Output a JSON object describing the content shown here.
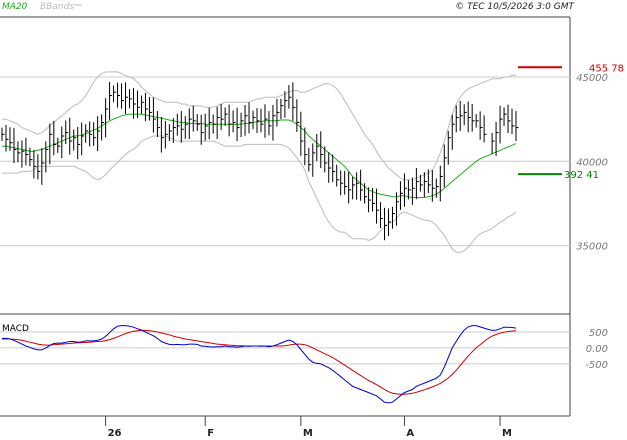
{
  "header": {
    "legend_ma": "MA20",
    "legend_bbands": "BBands",
    "copyright": "© TEC 10/5/2026 3:0 GMT"
  },
  "colors": {
    "price": "#000000",
    "ma20": "#22aa22",
    "bbands": "#bbbbbb",
    "resistance": "#cc0000",
    "support": "#008800",
    "macd": "#0000cc",
    "signal": "#cc0000",
    "grid": "#cccccc"
  },
  "chart_data": [
    {
      "type": "ohlc",
      "panel": "price",
      "ylim": [
        31000,
        48500
      ],
      "y_ticks": [
        {
          "value": 35000,
          "label": "35000"
        },
        {
          "value": 40000,
          "label": "40000"
        },
        {
          "value": 45000,
          "label": "45000"
        }
      ],
      "x_labels": [
        {
          "index": 26,
          "label": "26"
        },
        {
          "index": 51,
          "label": "F"
        },
        {
          "index": 75,
          "label": "M"
        },
        {
          "index": 101,
          "label": "A"
        },
        {
          "index": 125,
          "label": "M"
        }
      ],
      "count": 130,
      "close": [
        41600,
        41300,
        41100,
        40700,
        40500,
        40600,
        40400,
        40100,
        39700,
        39400,
        39900,
        40700,
        41600,
        41000,
        40900,
        41500,
        41700,
        41200,
        41400,
        41000,
        41500,
        41800,
        41600,
        41400,
        41800,
        42300,
        43100,
        43900,
        44100,
        43900,
        43600,
        43800,
        43700,
        43400,
        43200,
        43500,
        43100,
        42900,
        42500,
        42000,
        41400,
        41600,
        41800,
        42000,
        42100,
        41900,
        42200,
        42500,
        42400,
        42200,
        41700,
        42100,
        42300,
        42200,
        42600,
        42500,
        42800,
        42200,
        42300,
        42000,
        42400,
        42700,
        42300,
        42600,
        42400,
        42200,
        42500,
        42100,
        42700,
        42900,
        43300,
        43600,
        43800,
        43200,
        42300,
        41200,
        40400,
        39800,
        40500,
        40900,
        40400,
        39900,
        39600,
        39400,
        38900,
        38700,
        38500,
        38300,
        38600,
        38700,
        38300,
        37900,
        37700,
        37500,
        37100,
        36600,
        36200,
        36400,
        36900,
        37600,
        38100,
        38400,
        38300,
        38400,
        38800,
        38600,
        38800,
        38600,
        38400,
        38500,
        39100,
        40200,
        41400,
        42200,
        42600,
        42700,
        42900,
        42600,
        42400,
        42400,
        42000,
        41600,
        41000,
        41200,
        41700,
        42500,
        42800,
        42400,
        42100,
        42000
      ],
      "range": 800
    },
    {
      "type": "line",
      "panel": "price",
      "series": [
        {
          "name": "MA20",
          "values": [
            40900,
            40900,
            40850,
            40800,
            40750,
            40700,
            40650,
            40600,
            40600,
            40650,
            40700,
            40800,
            40900,
            41000,
            41100,
            41200,
            41300,
            41400,
            41500,
            41500,
            41550,
            41650,
            41750,
            41850,
            41950,
            42100,
            42250,
            42400,
            42500,
            42600,
            42700,
            42750,
            42800,
            42800,
            42800,
            42800,
            42750,
            42700,
            42650,
            42600,
            42550,
            42500,
            42450,
            42400,
            42350,
            42300,
            42300,
            42250,
            42250,
            42250,
            42250,
            42200,
            42200,
            42200,
            42200,
            42200,
            42200,
            42200,
            42200,
            42200,
            42200,
            42250,
            42250,
            42300,
            42350,
            42350,
            42400,
            42400,
            42400,
            42400,
            42450,
            42450,
            42450,
            42350,
            42200,
            42000,
            41800,
            41500,
            41300,
            41100,
            40900,
            40700,
            40500,
            40300,
            40100,
            39900,
            39700,
            39400,
            39100,
            38900,
            38700,
            38500,
            38300,
            38200,
            38100,
            38050,
            38000,
            37950,
            37900,
            37900,
            37950,
            37950,
            37900,
            37850,
            37850,
            37850,
            37850,
            37900,
            37950,
            38050,
            38200,
            38400,
            38600,
            38800,
            39000,
            39200,
            39400,
            39600,
            39800,
            40000,
            40150,
            40250,
            40350,
            40450,
            40550,
            40650,
            40750,
            40850,
            40950,
            41050
          ]
        },
        {
          "name": "BBands",
          "values": [
            42500,
            42500,
            42400,
            42300,
            42200,
            42000,
            41900,
            41800,
            41700,
            41600,
            41700,
            41900,
            42100,
            42300,
            42500,
            42700,
            42900,
            43100,
            43300,
            43400,
            43600,
            43900,
            44300,
            44700,
            45000,
            45200,
            45300,
            45300,
            45300,
            45300,
            45200,
            45100,
            45000,
            44900,
            44700,
            44400,
            44200,
            44000,
            43800,
            43700,
            43600,
            43500,
            43500,
            43500,
            43500,
            43400,
            43400,
            43300,
            43300,
            43300,
            43300,
            43200,
            43200,
            43200,
            43300,
            43400,
            43500,
            43500,
            43500,
            43500,
            43500,
            43500,
            43500,
            43600,
            43700,
            43700,
            43800,
            43800,
            43800,
            43800,
            43900,
            44000,
            44100,
            44200,
            44200,
            44100,
            44100,
            44200,
            44300,
            44400,
            44500,
            44600,
            44600,
            44500,
            44300,
            44000,
            43600,
            43200,
            42800,
            42400,
            42000,
            41600,
            41300,
            41000,
            40600,
            40200,
            39900,
            39600,
            39400,
            39200,
            39000,
            38900,
            38900,
            38900,
            39000,
            39100,
            39200,
            39300,
            39500,
            39900,
            40500,
            41200,
            42000,
            42800,
            43400,
            43800,
            44100,
            44300,
            44400,
            44500,
            44600,
            44700,
            44800,
            44900,
            44900,
            44900,
            45000,
            45000,
            45100,
            45100
          ]
        },
        {
          "name": "BBands_lower",
          "values": [
            39300,
            39300,
            39300,
            39300,
            39300,
            39400,
            39400,
            39400,
            39500,
            39700,
            39700,
            39700,
            39700,
            39700,
            39700,
            39700,
            39700,
            39700,
            39700,
            39600,
            39500,
            39400,
            39200,
            39000,
            38900,
            39000,
            39200,
            39500,
            39700,
            39900,
            40200,
            40400,
            40600,
            40700,
            40900,
            41200,
            41300,
            41400,
            41500,
            41500,
            41500,
            41500,
            41400,
            41300,
            41200,
            41200,
            41200,
            41200,
            41200,
            41200,
            41200,
            41200,
            41200,
            41200,
            41100,
            41000,
            40900,
            40900,
            40900,
            40900,
            40900,
            41000,
            41000,
            41000,
            41000,
            41000,
            41000,
            41000,
            41000,
            41000,
            41000,
            40900,
            40800,
            40500,
            40200,
            39900,
            39500,
            38800,
            38300,
            37800,
            37300,
            36800,
            36400,
            36100,
            35900,
            35800,
            35800,
            35600,
            35400,
            35400,
            35400,
            35400,
            35300,
            35400,
            35600,
            35900,
            36100,
            36300,
            36400,
            36600,
            36900,
            37000,
            36900,
            36800,
            36700,
            36600,
            36500,
            36500,
            36400,
            36200,
            35900,
            35600,
            35200,
            34800,
            34600,
            34600,
            34700,
            34900,
            35200,
            35500,
            35700,
            35800,
            35900,
            36000,
            36200,
            36400,
            36500,
            36700,
            36800,
            37000
          ]
        }
      ]
    },
    {
      "type": "line",
      "panel": "macd",
      "ylim": [
        -2100,
        1000
      ],
      "y_ticks": [
        {
          "value": 500,
          "label": "500"
        },
        {
          "value": 0,
          "label": "0.00"
        },
        {
          "value": -500,
          "label": "-500"
        }
      ],
      "series": [
        {
          "name": "MACD",
          "values": [
            300,
            300,
            280,
            240,
            180,
            120,
            60,
            20,
            -30,
            -60,
            -60,
            0,
            80,
            140,
            150,
            150,
            180,
            200,
            200,
            180,
            190,
            220,
            220,
            220,
            240,
            280,
            360,
            480,
            600,
            680,
            700,
            700,
            680,
            650,
            600,
            560,
            500,
            440,
            380,
            300,
            200,
            150,
            110,
            100,
            110,
            100,
            100,
            120,
            120,
            110,
            60,
            50,
            40,
            30,
            40,
            40,
            60,
            40,
            40,
            20,
            40,
            60,
            50,
            60,
            60,
            50,
            60,
            40,
            60,
            100,
            150,
            200,
            250,
            200,
            100,
            -50,
            -200,
            -350,
            -450,
            -480,
            -500,
            -560,
            -620,
            -700,
            -800,
            -900,
            -1000,
            -1100,
            -1200,
            -1250,
            -1300,
            -1350,
            -1400,
            -1450,
            -1500,
            -1600,
            -1700,
            -1720,
            -1700,
            -1600,
            -1500,
            -1400,
            -1350,
            -1300,
            -1200,
            -1150,
            -1100,
            -1050,
            -1000,
            -950,
            -850,
            -600,
            -300,
            0,
            200,
            400,
            560,
            660,
            700,
            700,
            660,
            620,
            580,
            550,
            560,
            600,
            650,
            650,
            640,
            620
          ]
        },
        {
          "name": "Signal",
          "values": [
            280,
            280,
            280,
            270,
            260,
            240,
            210,
            180,
            150,
            120,
            100,
            90,
            90,
            100,
            110,
            120,
            130,
            140,
            150,
            160,
            160,
            170,
            180,
            190,
            200,
            210,
            230,
            260,
            300,
            350,
            400,
            450,
            490,
            520,
            540,
            550,
            550,
            540,
            520,
            500,
            470,
            440,
            410,
            370,
            340,
            310,
            280,
            260,
            240,
            220,
            200,
            180,
            160,
            140,
            120,
            110,
            100,
            90,
            80,
            70,
            70,
            60,
            60,
            60,
            60,
            60,
            60,
            60,
            60,
            60,
            60,
            70,
            90,
            110,
            120,
            120,
            100,
            60,
            0,
            -60,
            -120,
            -180,
            -240,
            -300,
            -380,
            -460,
            -540,
            -620,
            -700,
            -780,
            -860,
            -940,
            -1020,
            -1080,
            -1150,
            -1220,
            -1300,
            -1370,
            -1420,
            -1440,
            -1450,
            -1450,
            -1440,
            -1420,
            -1390,
            -1350,
            -1310,
            -1270,
            -1220,
            -1170,
            -1110,
            -1030,
            -940,
            -830,
            -700,
            -550,
            -400,
            -250,
            -120,
            0,
            100,
            200,
            300,
            370,
            420,
            460,
            490,
            510,
            530,
            540
          ]
        }
      ]
    }
  ],
  "right_labels": {
    "resistance": {
      "value": 45578,
      "label": "455 78"
    },
    "support": {
      "value": 39241,
      "label": "392 41"
    }
  },
  "macd_panel": {
    "title": "MACD"
  }
}
